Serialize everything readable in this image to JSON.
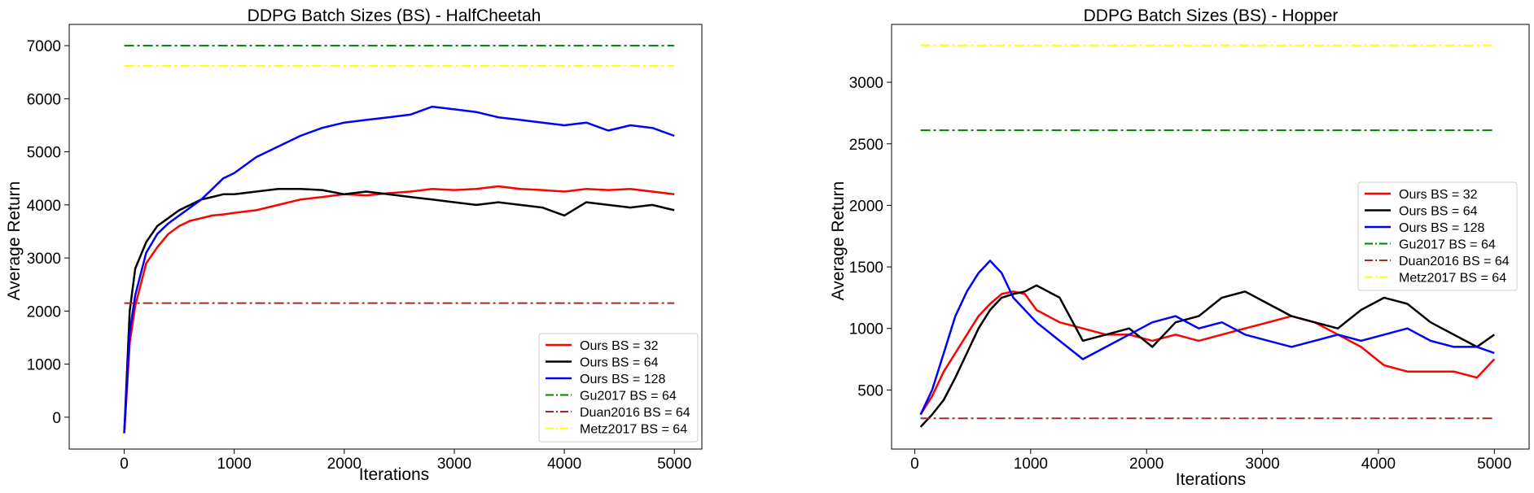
{
  "chart_data": [
    {
      "type": "line",
      "title": "DDPG Batch Sizes (BS) - HalfCheetah",
      "xlabel": "Iterations",
      "ylabel": "Average Return",
      "xlim": [
        -500,
        5250
      ],
      "ylim": [
        -600,
        7400
      ],
      "xticks": [
        0,
        1000,
        2000,
        3000,
        4000,
        5000
      ],
      "xtick_labels": [
        "0",
        "1000",
        "2000",
        "3000",
        "4000",
        "5000"
      ],
      "yticks": [
        0,
        1000,
        2000,
        3000,
        4000,
        5000,
        6000,
        7000
      ],
      "ytick_labels": [
        "0",
        "1000",
        "2000",
        "3000",
        "4000",
        "5000",
        "6000",
        "7000"
      ],
      "grid": false,
      "legend_position": "bottom-right",
      "series": [
        {
          "name": "Ours BS = 32",
          "color": "#ff0000",
          "style": "solid",
          "x": [
            0,
            50,
            100,
            200,
            300,
            400,
            500,
            600,
            700,
            800,
            900,
            1000,
            1200,
            1400,
            1600,
            1800,
            2000,
            2200,
            2400,
            2600,
            2800,
            3000,
            3200,
            3400,
            3600,
            3800,
            4000,
            4200,
            4400,
            4600,
            4800,
            5000
          ],
          "y": [
            -300,
            1400,
            2100,
            2900,
            3200,
            3450,
            3600,
            3700,
            3750,
            3800,
            3820,
            3850,
            3900,
            4000,
            4100,
            4150,
            4200,
            4180,
            4220,
            4250,
            4300,
            4280,
            4300,
            4350,
            4300,
            4280,
            4250,
            4300,
            4280,
            4300,
            4250,
            4200
          ]
        },
        {
          "name": "Ours BS = 64",
          "color": "#000000",
          "style": "solid",
          "x": [
            0,
            50,
            100,
            200,
            300,
            400,
            500,
            600,
            700,
            800,
            900,
            1000,
            1200,
            1400,
            1600,
            1800,
            2000,
            2200,
            2400,
            2600,
            2800,
            3000,
            3200,
            3400,
            3600,
            3800,
            4000,
            4200,
            4400,
            4600,
            4800,
            5000
          ],
          "y": [
            -300,
            2000,
            2800,
            3300,
            3600,
            3750,
            3900,
            4000,
            4100,
            4150,
            4200,
            4200,
            4250,
            4300,
            4300,
            4280,
            4200,
            4250,
            4200,
            4150,
            4100,
            4050,
            4000,
            4050,
            4000,
            3950,
            3800,
            4050,
            4000,
            3950,
            4000,
            3900
          ]
        },
        {
          "name": "Ours BS = 128",
          "color": "#0000ff",
          "style": "solid",
          "x": [
            0,
            50,
            100,
            200,
            300,
            400,
            500,
            600,
            700,
            800,
            900,
            1000,
            1200,
            1400,
            1600,
            1800,
            2000,
            2200,
            2400,
            2600,
            2800,
            3000,
            3200,
            3400,
            3600,
            3800,
            4000,
            4200,
            4400,
            4600,
            4800,
            5000
          ],
          "y": [
            -300,
            1600,
            2300,
            3100,
            3450,
            3650,
            3800,
            3950,
            4100,
            4300,
            4500,
            4600,
            4900,
            5100,
            5300,
            5450,
            5550,
            5600,
            5650,
            5700,
            5850,
            5800,
            5750,
            5650,
            5600,
            5550,
            5500,
            5550,
            5400,
            5500,
            5450,
            5300
          ]
        },
        {
          "name": "Gu2017 BS = 64",
          "color": "#008000",
          "style": "dashdot",
          "x": [
            0,
            5000
          ],
          "y": [
            7000,
            7000
          ]
        },
        {
          "name": "Duan2016 BS = 64",
          "color": "#a52a2a",
          "style": "dashdot",
          "x": [
            0,
            5000
          ],
          "y": [
            2150,
            2150
          ]
        },
        {
          "name": "Metz2017 BS = 64",
          "color": "#ffff00",
          "style": "dashdot",
          "x": [
            0,
            5000
          ],
          "y": [
            6620,
            6620
          ]
        }
      ]
    },
    {
      "type": "line",
      "title": "DDPG Batch Sizes (BS) - Hopper",
      "xlabel": "Iterations",
      "ylabel": "Average Return",
      "xlim": [
        -200,
        5300
      ],
      "ylim": [
        20,
        3470
      ],
      "xticks": [
        0,
        1000,
        2000,
        3000,
        4000,
        5000
      ],
      "xtick_labels": [
        "0",
        "1000",
        "2000",
        "3000",
        "4000",
        "5000"
      ],
      "yticks": [
        500,
        1000,
        1500,
        2000,
        2500,
        3000
      ],
      "ytick_labels": [
        "500",
        "1000",
        "1500",
        "2000",
        "2500",
        "3000"
      ],
      "grid": false,
      "legend_position": "center-right",
      "series": [
        {
          "name": "Ours BS = 32",
          "color": "#ff0000",
          "style": "solid",
          "x": [
            50,
            150,
            250,
            350,
            450,
            550,
            650,
            750,
            850,
            950,
            1050,
            1250,
            1450,
            1650,
            1850,
            2050,
            2250,
            2450,
            2650,
            2850,
            3050,
            3250,
            3450,
            3650,
            3850,
            4050,
            4250,
            4450,
            4650,
            4850,
            5000
          ],
          "y": [
            300,
            450,
            650,
            800,
            950,
            1100,
            1200,
            1280,
            1300,
            1280,
            1150,
            1050,
            1000,
            950,
            950,
            900,
            950,
            900,
            950,
            1000,
            1050,
            1100,
            1050,
            950,
            850,
            700,
            650,
            650,
            650,
            600,
            750
          ]
        },
        {
          "name": "Ours BS = 64",
          "color": "#000000",
          "style": "solid",
          "x": [
            50,
            150,
            250,
            350,
            450,
            550,
            650,
            750,
            850,
            950,
            1050,
            1250,
            1450,
            1650,
            1850,
            2050,
            2250,
            2450,
            2650,
            2850,
            3050,
            3250,
            3450,
            3650,
            3850,
            4050,
            4250,
            4450,
            4650,
            4850,
            5000
          ],
          "y": [
            200,
            300,
            420,
            600,
            800,
            1000,
            1150,
            1250,
            1280,
            1300,
            1350,
            1250,
            900,
            950,
            1000,
            850,
            1050,
            1100,
            1250,
            1300,
            1200,
            1100,
            1050,
            1000,
            1150,
            1250,
            1200,
            1050,
            950,
            850,
            950
          ]
        },
        {
          "name": "Ours BS = 128",
          "color": "#0000ff",
          "style": "solid",
          "x": [
            50,
            150,
            250,
            350,
            450,
            550,
            650,
            750,
            850,
            950,
            1050,
            1250,
            1450,
            1650,
            1850,
            2050,
            2250,
            2450,
            2650,
            2850,
            3050,
            3250,
            3450,
            3650,
            3850,
            4050,
            4250,
            4450,
            4650,
            4850,
            5000
          ],
          "y": [
            300,
            500,
            800,
            1100,
            1300,
            1450,
            1550,
            1450,
            1250,
            1150,
            1050,
            900,
            750,
            850,
            950,
            1050,
            1100,
            1000,
            1050,
            950,
            900,
            850,
            900,
            950,
            900,
            950,
            1000,
            900,
            850,
            850,
            800
          ]
        },
        {
          "name": "Gu2017 BS = 64",
          "color": "#008000",
          "style": "dashdot",
          "x": [
            50,
            5000
          ],
          "y": [
            2610,
            2610
          ]
        },
        {
          "name": "Duan2016 BS = 64",
          "color": "#a52a2a",
          "style": "dashdot",
          "x": [
            50,
            5000
          ],
          "y": [
            270,
            270
          ]
        },
        {
          "name": "Metz2017 BS = 64",
          "color": "#ffff00",
          "style": "dashdot",
          "x": [
            50,
            5000
          ],
          "y": [
            3300,
            3300
          ]
        }
      ]
    }
  ]
}
